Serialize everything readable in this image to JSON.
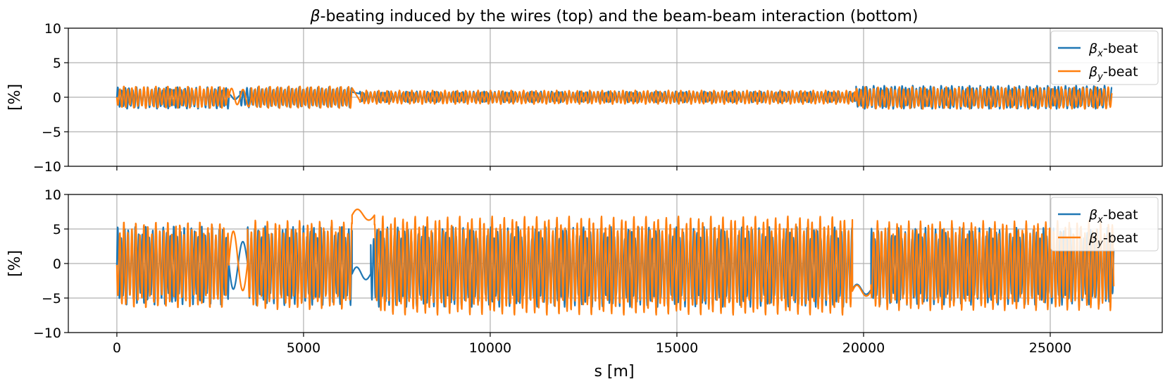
{
  "title": {
    "greek": "β",
    "rest": "-beating induced by the wires (top) and the beam-beam interaction (bottom)"
  },
  "chart_data": [
    {
      "type": "line",
      "panel": "top",
      "ylabel": "[%]",
      "xlim": [
        -1300,
        28000
      ],
      "ylim": [
        -10,
        10
      ],
      "xticks": [
        0,
        5000,
        10000,
        15000,
        20000,
        25000
      ],
      "yticks": [
        -10,
        -5,
        0,
        5,
        10
      ],
      "grid": true,
      "legend": "top-right",
      "series": [
        {
          "name_base": "β",
          "name_sub": "x",
          "name_suffix": "-beat",
          "color": "#1f77b4",
          "segments": [
            {
              "x": [
                0,
                3000
              ],
              "oscillations": 30,
              "amplitude": 1.6,
              "phase": 0.0,
              "offset": -0.1
            },
            {
              "x": [
                3000,
                3300
              ],
              "oscillations": 1,
              "amplitude": 0.4,
              "phase": 0.2,
              "offset": 0.0
            },
            {
              "x": [
                3300,
                6300
              ],
              "oscillations": 30,
              "amplitude": 1.5,
              "phase": 0.4,
              "offset": 0.0
            },
            {
              "x": [
                6500,
                19800
              ],
              "oscillations": 140,
              "amplitude": 0.8,
              "phase": 0.1,
              "offset": 0.05
            },
            {
              "x": [
                19800,
                26650
              ],
              "oscillations": 72,
              "amplitude": 1.7,
              "phase": 0.3,
              "offset": 0.0
            }
          ]
        },
        {
          "name_base": "β",
          "name_sub": "y",
          "name_suffix": "-beat",
          "color": "#ff7f0e",
          "segments": [
            {
              "x": [
                0,
                3000
              ],
              "oscillations": 28,
              "amplitude": 1.6,
              "phase": 0.5,
              "offset": 0.0
            },
            {
              "x": [
                3000,
                3600
              ],
              "oscillations": 2,
              "amplitude": 1.5,
              "phase": 0.0,
              "offset": 0.0
            },
            {
              "x": [
                3600,
                6300
              ],
              "oscillations": 27,
              "amplitude": 1.6,
              "phase": 0.2,
              "offset": 0.0
            },
            {
              "x": [
                6500,
                19800
              ],
              "oscillations": 120,
              "amplitude": 1.0,
              "phase": 0.6,
              "offset": 0.0
            },
            {
              "x": [
                19800,
                26650
              ],
              "oscillations": 60,
              "amplitude": 1.6,
              "phase": 0.1,
              "offset": -0.1
            }
          ]
        }
      ]
    },
    {
      "type": "line",
      "panel": "bottom",
      "ylabel": "[%]",
      "xlabel": "s [m]",
      "xlim": [
        -1300,
        28000
      ],
      "ylim": [
        -10,
        10
      ],
      "xticks": [
        0,
        5000,
        10000,
        15000,
        20000,
        25000
      ],
      "yticks": [
        -10,
        -5,
        0,
        5,
        10
      ],
      "grid": true,
      "legend": "top-right",
      "series": [
        {
          "name_base": "β",
          "name_sub": "x",
          "name_suffix": "-beat",
          "color": "#1f77b4",
          "segments": [
            {
              "x": [
                0,
                3000
              ],
              "oscillations": 32,
              "amplitude": 5.8,
              "phase": 0.0,
              "offset": -0.3
            },
            {
              "x": [
                3000,
                3500
              ],
              "oscillations": 1,
              "amplitude": 4.5,
              "phase": 0.5,
              "offset": 0.0
            },
            {
              "x": [
                3500,
                6300
              ],
              "oscillations": 30,
              "amplitude": 5.8,
              "phase": 0.2,
              "offset": -0.3
            },
            {
              "x": [
                6300,
                6800
              ],
              "oscillations": 1,
              "amplitude": 1.0,
              "phase": 0.0,
              "offset": -1.5
            },
            {
              "x": [
                6800,
                19700
              ],
              "oscillations": 140,
              "amplitude": 5.8,
              "phase": 0.4,
              "offset": -0.5
            },
            {
              "x": [
                19700,
                20200
              ],
              "oscillations": 1,
              "amplitude": 0.8,
              "phase": 0.0,
              "offset": -3.8
            },
            {
              "x": [
                20200,
                26700
              ],
              "oscillations": 72,
              "amplitude": 5.6,
              "phase": 0.1,
              "offset": -0.4
            }
          ]
        },
        {
          "name_base": "β",
          "name_sub": "y",
          "name_suffix": "-beat",
          "color": "#ff7f0e",
          "segments": [
            {
              "x": [
                0,
                3000
              ],
              "oscillations": 28,
              "amplitude": 6.3,
              "phase": 0.5,
              "offset": -0.2
            },
            {
              "x": [
                3000,
                3500
              ],
              "oscillations": 1,
              "amplitude": 5.5,
              "phase": 0.0,
              "offset": 0.0
            },
            {
              "x": [
                3500,
                6300
              ],
              "oscillations": 26,
              "amplitude": 6.5,
              "phase": 0.3,
              "offset": -0.2
            },
            {
              "x": [
                6300,
                6900
              ],
              "oscillations": 1,
              "amplitude": 1.0,
              "phase": 0.0,
              "offset": 7.0
            },
            {
              "x": [
                6900,
                19700
              ],
              "oscillations": 118,
              "amplitude": 7.2,
              "phase": 0.2,
              "offset": -0.3
            },
            {
              "x": [
                19700,
                20200
              ],
              "oscillations": 1,
              "amplitude": 1.0,
              "phase": 0.0,
              "offset": -4.0
            },
            {
              "x": [
                20200,
                26700
              ],
              "oscillations": 62,
              "amplitude": 6.5,
              "phase": 0.6,
              "offset": -0.3
            }
          ]
        }
      ]
    }
  ]
}
